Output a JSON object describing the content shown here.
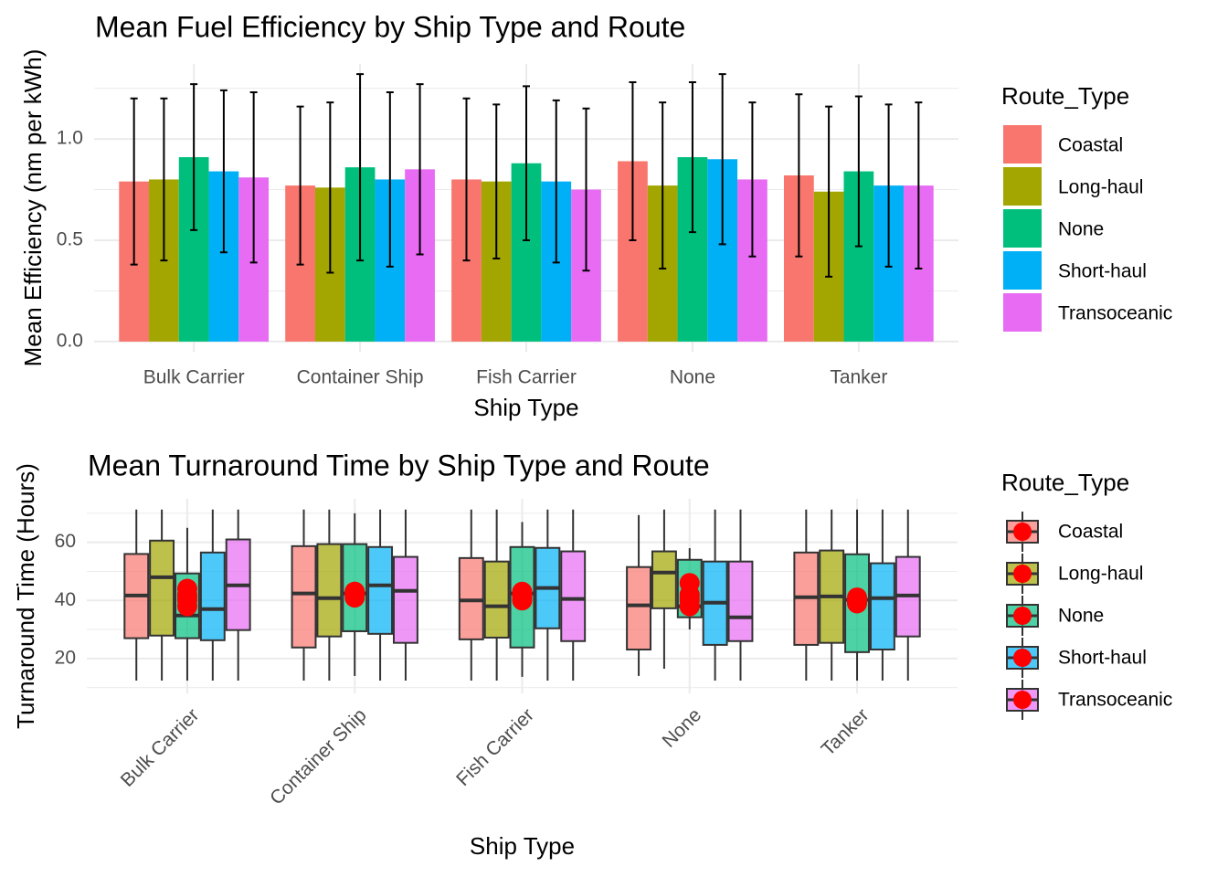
{
  "chart_data": [
    {
      "type": "bar",
      "title": "Mean Fuel Efficiency by Ship Type and Route",
      "x_label": "Ship Type",
      "y_label": "Mean Efficiency (nm per kWh)",
      "legend_title": "Route_Type",
      "categories": [
        "Bulk Carrier",
        "Container Ship",
        "Fish Carrier",
        "None",
        "Tanker"
      ],
      "series": [
        {
          "name": "Coastal",
          "color": "#F8766D",
          "values": [
            0.79,
            0.77,
            0.8,
            0.89,
            0.82
          ],
          "errors": [
            0.41,
            0.39,
            0.4,
            0.39,
            0.4
          ]
        },
        {
          "name": "Long-haul",
          "color": "#A3A500",
          "values": [
            0.8,
            0.76,
            0.79,
            0.77,
            0.74
          ],
          "errors": [
            0.4,
            0.42,
            0.38,
            0.41,
            0.42
          ]
        },
        {
          "name": "None",
          "color": "#00BF7D",
          "values": [
            0.91,
            0.86,
            0.88,
            0.91,
            0.84
          ],
          "errors": [
            0.36,
            0.46,
            0.38,
            0.37,
            0.37
          ]
        },
        {
          "name": "Short-haul",
          "color": "#00B0F6",
          "values": [
            0.84,
            0.8,
            0.79,
            0.9,
            0.77
          ],
          "errors": [
            0.4,
            0.43,
            0.4,
            0.42,
            0.4
          ]
        },
        {
          "name": "Transoceanic",
          "color": "#E76BF3",
          "values": [
            0.81,
            0.85,
            0.75,
            0.8,
            0.77
          ],
          "errors": [
            0.42,
            0.42,
            0.4,
            0.38,
            0.41
          ]
        }
      ],
      "ylim": [
        -0.05,
        1.37
      ],
      "yticks": [
        {
          "value": 0,
          "label": "0.0"
        },
        0.5,
        {
          "value": 1,
          "label": "1.0"
        }
      ],
      "minor_yticks": [
        0.25,
        0.75,
        1.25
      ],
      "grid": true,
      "legend": "right"
    },
    {
      "type": "boxplot",
      "title": "Mean Turnaround Time by Ship Type and Route",
      "x_label": "Ship Type",
      "y_label": "Turnaround Time (Hours)",
      "legend_title": "Route_Type",
      "mean_color": "#FF0000",
      "categories": [
        "Bulk Carrier",
        "Container Ship",
        "Fish Carrier",
        "None",
        "Tanker"
      ],
      "series": [
        {
          "name": "Coastal",
          "color": "#F8766D",
          "whisker_low": [
            12.4,
            12.4,
            12.4,
            14,
            12.4
          ],
          "q1": [
            27,
            23.8,
            26.6,
            23.1,
            24.7
          ],
          "median": [
            41.7,
            42.4,
            40,
            38.3,
            41.1
          ],
          "q3": [
            56,
            58.7,
            54.6,
            51.5,
            56.5
          ],
          "whisker_high": [
            71.3,
            71.3,
            71.3,
            69.4,
            71.3
          ],
          "mean": [
            42,
            42,
            41,
            46,
            40
          ]
        },
        {
          "name": "Long-haul",
          "color": "#A3A500",
          "whisker_low": [
            12.4,
            12.4,
            12.4,
            16.5,
            12.4
          ],
          "q1": [
            27.9,
            27.6,
            27.2,
            37.3,
            25.4
          ],
          "median": [
            48,
            40.8,
            38,
            49.6,
            41.4
          ],
          "q3": [
            60.6,
            59.4,
            53.4,
            56.9,
            57.2
          ],
          "whisker_high": [
            71.3,
            71.3,
            71.3,
            71.3,
            71.3
          ],
          "mean": [
            44,
            43,
            42,
            41,
            41
          ]
        },
        {
          "name": "None",
          "color": "#00BF7D",
          "whisker_low": [
            12.4,
            14,
            13.7,
            30,
            12.4
          ],
          "q1": [
            27,
            29.4,
            23.8,
            34.2,
            22.2
          ],
          "median": [
            34.8,
            42.4,
            42.4,
            38,
            40.2
          ],
          "q3": [
            49.3,
            59.4,
            58.4,
            54,
            55.9
          ],
          "whisker_high": [
            65,
            70,
            67,
            58,
            71.3
          ],
          "mean": [
            38,
            41,
            40,
            38,
            39
          ]
        },
        {
          "name": "Short-haul",
          "color": "#00B0F6",
          "whisker_low": [
            12.4,
            12.4,
            12.4,
            12.4,
            12.4
          ],
          "q1": [
            26.3,
            28.5,
            30.4,
            24.7,
            23.1
          ],
          "median": [
            37,
            45.2,
            44.3,
            39.2,
            40.8
          ],
          "q3": [
            56.5,
            58.4,
            58.1,
            53.4,
            52.8
          ],
          "whisker_high": [
            71.3,
            71.3,
            71.3,
            71.3,
            71.3
          ],
          "mean": [
            40,
            42,
            43,
            40,
            40
          ]
        },
        {
          "name": "Transoceanic",
          "color": "#E76BF3",
          "whisker_low": [
            12.4,
            12.4,
            12.4,
            12.4,
            12.4
          ],
          "q1": [
            29.8,
            25.4,
            26,
            26,
            27.6
          ],
          "median": [
            45.2,
            43.3,
            40.5,
            34.2,
            41.7
          ],
          "q3": [
            61,
            55,
            56.9,
            53.4,
            55
          ],
          "whisker_high": [
            71.3,
            71.3,
            71.3,
            71.3,
            71.3
          ],
          "mean": [
            41,
            43,
            41,
            42,
            40
          ]
        }
      ],
      "ylim": [
        8,
        75
      ],
      "yticks": [
        20,
        40,
        60
      ],
      "minor_yticks": [
        10,
        30,
        50,
        70
      ],
      "grid": true,
      "legend": "right"
    }
  ]
}
